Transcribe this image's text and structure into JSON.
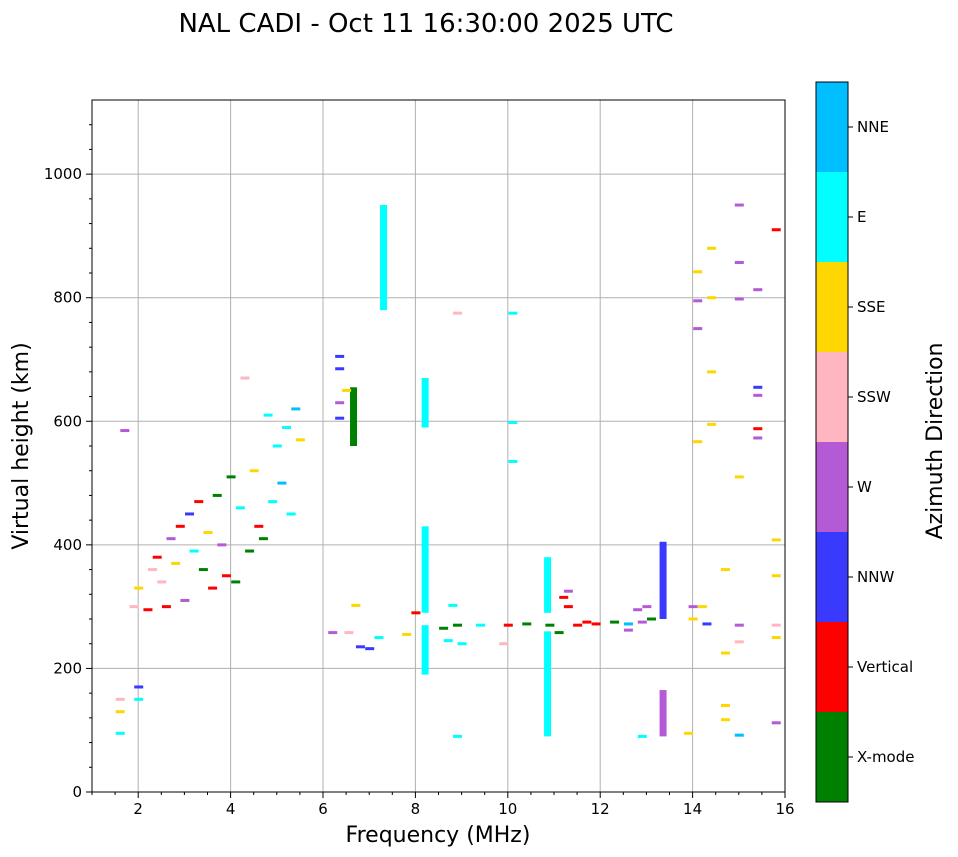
{
  "chart_data": {
    "type": "scatter",
    "title": "NAL CADI - Oct 11 16:30:00 2025 UTC",
    "xlabel": "Frequency (MHz)",
    "ylabel": "Virtual height (km)",
    "xlim": [
      1,
      16
    ],
    "ylim": [
      0,
      1120
    ],
    "xticks": [
      2,
      4,
      6,
      8,
      10,
      12,
      14,
      16
    ],
    "yticks": [
      0,
      200,
      400,
      600,
      800,
      1000
    ],
    "grid": true,
    "colorbar": {
      "label": "Azimuth Direction",
      "categories": [
        {
          "name": "X-mode",
          "color": "#008000"
        },
        {
          "name": "Vertical",
          "color": "#ff0000"
        },
        {
          "name": "NNW",
          "color": "#3a3aff"
        },
        {
          "name": "W",
          "color": "#b55ad6"
        },
        {
          "name": "SSW",
          "color": "#ffb6c1"
        },
        {
          "name": "SSE",
          "color": "#ffd700"
        },
        {
          "name": "E",
          "color": "#00ffff"
        },
        {
          "name": "NNE",
          "color": "#00bfff"
        }
      ]
    },
    "segments": [
      {
        "f": 7.3,
        "h0": 780,
        "h1": 950,
        "dir": "E"
      },
      {
        "f": 8.2,
        "h0": 590,
        "h1": 670,
        "dir": "E"
      },
      {
        "f": 8.2,
        "h0": 290,
        "h1": 430,
        "dir": "E"
      },
      {
        "f": 8.2,
        "h0": 190,
        "h1": 270,
        "dir": "E"
      },
      {
        "f": 10.85,
        "h0": 90,
        "h1": 260,
        "dir": "E"
      },
      {
        "f": 10.85,
        "h0": 290,
        "h1": 380,
        "dir": "E"
      },
      {
        "f": 13.35,
        "h0": 280,
        "h1": 405,
        "dir": "NNW"
      },
      {
        "f": 13.35,
        "h0": 90,
        "h1": 165,
        "dir": "W"
      },
      {
        "f": 6.65,
        "h0": 560,
        "h1": 655,
        "dir": "X-mode"
      }
    ],
    "points": [
      {
        "f": 1.6,
        "h": 95,
        "dir": "E"
      },
      {
        "f": 1.6,
        "h": 130,
        "dir": "SSE"
      },
      {
        "f": 1.6,
        "h": 150,
        "dir": "SSW"
      },
      {
        "f": 1.7,
        "h": 585,
        "dir": "W"
      },
      {
        "f": 1.9,
        "h": 300,
        "dir": "SSW"
      },
      {
        "f": 2.0,
        "h": 330,
        "dir": "SSE"
      },
      {
        "f": 2.0,
        "h": 170,
        "dir": "NNW"
      },
      {
        "f": 2.0,
        "h": 150,
        "dir": "E"
      },
      {
        "f": 2.2,
        "h": 295,
        "dir": "Vertical"
      },
      {
        "f": 2.3,
        "h": 360,
        "dir": "SSW"
      },
      {
        "f": 2.4,
        "h": 380,
        "dir": "Vertical"
      },
      {
        "f": 2.5,
        "h": 340,
        "dir": "SSW"
      },
      {
        "f": 2.6,
        "h": 300,
        "dir": "Vertical"
      },
      {
        "f": 2.7,
        "h": 410,
        "dir": "W"
      },
      {
        "f": 2.8,
        "h": 370,
        "dir": "SSE"
      },
      {
        "f": 2.9,
        "h": 430,
        "dir": "Vertical"
      },
      {
        "f": 3.0,
        "h": 310,
        "dir": "W"
      },
      {
        "f": 3.1,
        "h": 450,
        "dir": "NNW"
      },
      {
        "f": 3.2,
        "h": 390,
        "dir": "E"
      },
      {
        "f": 3.3,
        "h": 470,
        "dir": "Vertical"
      },
      {
        "f": 3.4,
        "h": 360,
        "dir": "X-mode"
      },
      {
        "f": 3.5,
        "h": 420,
        "dir": "SSE"
      },
      {
        "f": 3.6,
        "h": 330,
        "dir": "Vertical"
      },
      {
        "f": 3.7,
        "h": 480,
        "dir": "X-mode"
      },
      {
        "f": 3.8,
        "h": 400,
        "dir": "W"
      },
      {
        "f": 3.9,
        "h": 350,
        "dir": "Vertical"
      },
      {
        "f": 4.0,
        "h": 510,
        "dir": "X-mode"
      },
      {
        "f": 4.1,
        "h": 340,
        "dir": "X-mode"
      },
      {
        "f": 4.2,
        "h": 460,
        "dir": "E"
      },
      {
        "f": 4.3,
        "h": 670,
        "dir": "SSW"
      },
      {
        "f": 4.4,
        "h": 390,
        "dir": "X-mode"
      },
      {
        "f": 4.5,
        "h": 520,
        "dir": "SSE"
      },
      {
        "f": 4.6,
        "h": 430,
        "dir": "Vertical"
      },
      {
        "f": 4.7,
        "h": 410,
        "dir": "X-mode"
      },
      {
        "f": 4.8,
        "h": 610,
        "dir": "E"
      },
      {
        "f": 4.9,
        "h": 470,
        "dir": "E"
      },
      {
        "f": 5.0,
        "h": 560,
        "dir": "E"
      },
      {
        "f": 5.1,
        "h": 500,
        "dir": "NNE"
      },
      {
        "f": 5.2,
        "h": 590,
        "dir": "E"
      },
      {
        "f": 5.3,
        "h": 450,
        "dir": "E"
      },
      {
        "f": 5.4,
        "h": 620,
        "dir": "NNE"
      },
      {
        "f": 5.5,
        "h": 570,
        "dir": "SSE"
      },
      {
        "f": 6.35,
        "h": 705,
        "dir": "NNW"
      },
      {
        "f": 6.35,
        "h": 685,
        "dir": "NNW"
      },
      {
        "f": 6.35,
        "h": 630,
        "dir": "W"
      },
      {
        "f": 6.35,
        "h": 605,
        "dir": "NNW"
      },
      {
        "f": 6.5,
        "h": 650,
        "dir": "SSE"
      },
      {
        "f": 6.55,
        "h": 258,
        "dir": "SSW"
      },
      {
        "f": 6.2,
        "h": 258,
        "dir": "W"
      },
      {
        "f": 6.8,
        "h": 235,
        "dir": "NNW"
      },
      {
        "f": 7.0,
        "h": 232,
        "dir": "NNW"
      },
      {
        "f": 6.7,
        "h": 302,
        "dir": "SSE"
      },
      {
        "f": 7.2,
        "h": 250,
        "dir": "E"
      },
      {
        "f": 7.8,
        "h": 255,
        "dir": "SSE"
      },
      {
        "f": 8.0,
        "h": 290,
        "dir": "Vertical"
      },
      {
        "f": 8.9,
        "h": 775,
        "dir": "SSW"
      },
      {
        "f": 8.6,
        "h": 265,
        "dir": "X-mode"
      },
      {
        "f": 8.9,
        "h": 270,
        "dir": "X-mode"
      },
      {
        "f": 8.7,
        "h": 245,
        "dir": "E"
      },
      {
        "f": 9.0,
        "h": 240,
        "dir": "E"
      },
      {
        "f": 8.8,
        "h": 302,
        "dir": "E"
      },
      {
        "f": 8.9,
        "h": 90,
        "dir": "E"
      },
      {
        "f": 9.4,
        "h": 270,
        "dir": "E"
      },
      {
        "f": 10.1,
        "h": 775,
        "dir": "E"
      },
      {
        "f": 10.1,
        "h": 598,
        "dir": "E"
      },
      {
        "f": 10.1,
        "h": 535,
        "dir": "E"
      },
      {
        "f": 9.9,
        "h": 240,
        "dir": "SSW"
      },
      {
        "f": 10.0,
        "h": 270,
        "dir": "Vertical"
      },
      {
        "f": 10.4,
        "h": 272,
        "dir": "X-mode"
      },
      {
        "f": 10.9,
        "h": 270,
        "dir": "X-mode"
      },
      {
        "f": 11.1,
        "h": 258,
        "dir": "X-mode"
      },
      {
        "f": 11.3,
        "h": 300,
        "dir": "Vertical"
      },
      {
        "f": 11.5,
        "h": 270,
        "dir": "Vertical"
      },
      {
        "f": 11.7,
        "h": 275,
        "dir": "Vertical"
      },
      {
        "f": 11.9,
        "h": 272,
        "dir": "Vertical"
      },
      {
        "f": 11.3,
        "h": 325,
        "dir": "W"
      },
      {
        "f": 11.2,
        "h": 315,
        "dir": "Vertical"
      },
      {
        "f": 12.3,
        "h": 275,
        "dir": "X-mode"
      },
      {
        "f": 12.6,
        "h": 272,
        "dir": "NNE"
      },
      {
        "f": 12.8,
        "h": 295,
        "dir": "W"
      },
      {
        "f": 12.9,
        "h": 275,
        "dir": "W"
      },
      {
        "f": 13.1,
        "h": 280,
        "dir": "X-mode"
      },
      {
        "f": 13.0,
        "h": 300,
        "dir": "W"
      },
      {
        "f": 12.6,
        "h": 262,
        "dir": "W"
      },
      {
        "f": 12.9,
        "h": 90,
        "dir": "E"
      },
      {
        "f": 13.9,
        "h": 95,
        "dir": "SSE"
      },
      {
        "f": 14.1,
        "h": 842,
        "dir": "SSE"
      },
      {
        "f": 14.1,
        "h": 795,
        "dir": "W"
      },
      {
        "f": 14.1,
        "h": 750,
        "dir": "W"
      },
      {
        "f": 14.1,
        "h": 567,
        "dir": "SSE"
      },
      {
        "f": 14.4,
        "h": 880,
        "dir": "SSE"
      },
      {
        "f": 14.4,
        "h": 800,
        "dir": "SSE"
      },
      {
        "f": 14.4,
        "h": 680,
        "dir": "SSE"
      },
      {
        "f": 14.4,
        "h": 595,
        "dir": "SSE"
      },
      {
        "f": 14.0,
        "h": 300,
        "dir": "W"
      },
      {
        "f": 14.2,
        "h": 300,
        "dir": "SSE"
      },
      {
        "f": 14.0,
        "h": 280,
        "dir": "SSE"
      },
      {
        "f": 14.3,
        "h": 272,
        "dir": "NNW"
      },
      {
        "f": 14.7,
        "h": 360,
        "dir": "SSE"
      },
      {
        "f": 14.7,
        "h": 225,
        "dir": "SSE"
      },
      {
        "f": 14.7,
        "h": 140,
        "dir": "SSE"
      },
      {
        "f": 14.7,
        "h": 117,
        "dir": "SSE"
      },
      {
        "f": 15.0,
        "h": 950,
        "dir": "W"
      },
      {
        "f": 15.0,
        "h": 857,
        "dir": "W"
      },
      {
        "f": 15.0,
        "h": 798,
        "dir": "W"
      },
      {
        "f": 15.0,
        "h": 510,
        "dir": "SSE"
      },
      {
        "f": 15.0,
        "h": 270,
        "dir": "W"
      },
      {
        "f": 15.0,
        "h": 243,
        "dir": "SSW"
      },
      {
        "f": 15.0,
        "h": 92,
        "dir": "NNE"
      },
      {
        "f": 15.4,
        "h": 813,
        "dir": "W"
      },
      {
        "f": 15.4,
        "h": 655,
        "dir": "NNW"
      },
      {
        "f": 15.4,
        "h": 642,
        "dir": "W"
      },
      {
        "f": 15.4,
        "h": 588,
        "dir": "Vertical"
      },
      {
        "f": 15.4,
        "h": 573,
        "dir": "W"
      },
      {
        "f": 15.8,
        "h": 910,
        "dir": "Vertical"
      },
      {
        "f": 15.8,
        "h": 408,
        "dir": "SSE"
      },
      {
        "f": 15.8,
        "h": 350,
        "dir": "SSE"
      },
      {
        "f": 15.8,
        "h": 270,
        "dir": "SSW"
      },
      {
        "f": 15.8,
        "h": 250,
        "dir": "SSE"
      },
      {
        "f": 15.8,
        "h": 112,
        "dir": "W"
      }
    ]
  }
}
